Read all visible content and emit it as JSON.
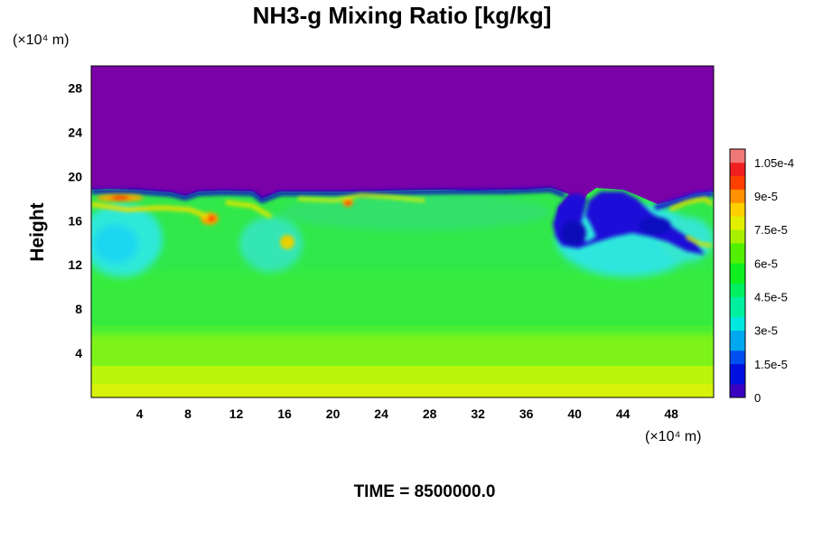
{
  "chart_data": {
    "type": "heatmap",
    "title": "NH3-g Mixing Ratio [kg/kg]",
    "ylabel": "Height",
    "y_unit": "(×10⁴ m)",
    "x_unit": "(×10⁴ m)",
    "xlim": [
      0,
      51.5
    ],
    "ylim": [
      0,
      30
    ],
    "x_ticks": [
      "4",
      "8",
      "12",
      "16",
      "20",
      "24",
      "28",
      "32",
      "36",
      "40",
      "44",
      "48"
    ],
    "y_ticks": [
      "4",
      "8",
      "12",
      "16",
      "20",
      "24",
      "28"
    ],
    "colorbar": {
      "min": 0,
      "max": 0.000111,
      "tick_labels": [
        "1.05e-4",
        "9e-5",
        "7.5e-5",
        "6e-5",
        "4.5e-5",
        "3e-5",
        "1.5e-5",
        "0"
      ],
      "tick_values": [
        0.000105,
        9e-05,
        7.5e-05,
        6e-05,
        4.5e-05,
        3e-05,
        1.5e-05,
        0
      ]
    },
    "field_summary": [
      {
        "height": 1,
        "value": 7.8e-05
      },
      {
        "height": 3,
        "value": 7.2e-05
      },
      {
        "height": 5,
        "value": 6.6e-05
      },
      {
        "height": 7,
        "value": 6e-05
      },
      {
        "height": 9,
        "value": 5.4e-05
      },
      {
        "height": 11,
        "value": 5e-05
      },
      {
        "height": 13,
        "value": 4.7e-05
      },
      {
        "height": 15,
        "value": 4.5e-05
      },
      {
        "height": 17,
        "value": 4.8e-05
      },
      {
        "height": 18.5,
        "value": 1e-05
      },
      {
        "height": 20,
        "value": 0
      }
    ],
    "footer": "TIME = 8500000.0"
  }
}
